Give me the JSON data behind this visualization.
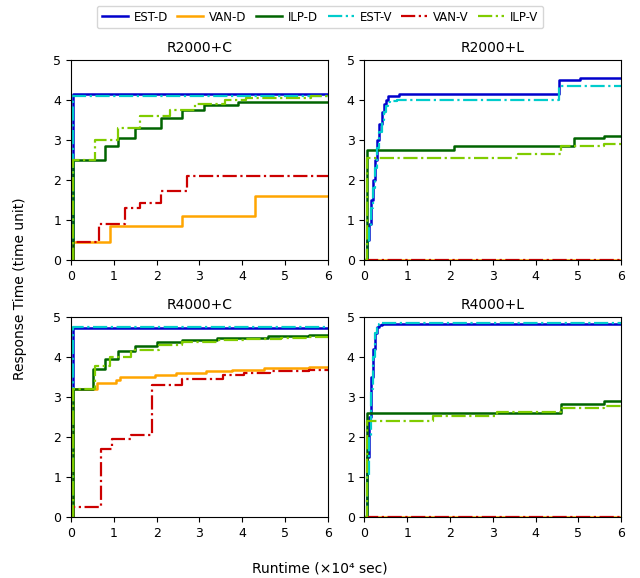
{
  "subplots": [
    {
      "title": "R2000+C",
      "xlim": [
        0,
        6
      ],
      "ylim": [
        0,
        5
      ],
      "series": {
        "EST-D": {
          "color": "#0000cc",
          "linestyle": "-",
          "lw": 1.8,
          "x": [
            0,
            0.05,
            6
          ],
          "y": [
            0,
            4.15,
            4.15
          ]
        },
        "VAN-D": {
          "color": "#ffa500",
          "linestyle": "-",
          "lw": 1.8,
          "x": [
            0,
            0.05,
            0.85,
            0.9,
            2.55,
            2.6,
            4.25,
            4.3,
            6
          ],
          "y": [
            0,
            0.45,
            0.45,
            0.85,
            0.85,
            1.1,
            1.1,
            1.6,
            1.6
          ]
        },
        "ILP-D": {
          "color": "#006400",
          "linestyle": "-",
          "lw": 1.8,
          "x": [
            0,
            0.05,
            0.75,
            0.8,
            1.05,
            1.1,
            1.45,
            1.5,
            2.05,
            2.1,
            2.55,
            2.6,
            3.05,
            3.1,
            3.85,
            3.9,
            6
          ],
          "y": [
            0,
            2.5,
            2.5,
            2.85,
            2.85,
            3.05,
            3.05,
            3.3,
            3.3,
            3.55,
            3.55,
            3.75,
            3.75,
            3.88,
            3.88,
            3.97,
            3.97
          ]
        },
        "EST-V": {
          "color": "#00cccc",
          "linestyle": "-.",
          "lw": 1.6,
          "x": [
            0,
            0.05,
            6
          ],
          "y": [
            0,
            4.1,
            4.1
          ]
        },
        "VAN-V": {
          "color": "#cc0000",
          "linestyle": "-.",
          "lw": 1.6,
          "x": [
            0,
            0.05,
            0.6,
            0.65,
            1.2,
            1.25,
            1.55,
            1.6,
            2.05,
            2.1,
            2.65,
            2.7,
            4.25,
            4.3,
            6
          ],
          "y": [
            0,
            0.45,
            0.45,
            0.9,
            0.9,
            1.3,
            1.3,
            1.43,
            1.43,
            1.72,
            1.72,
            2.1,
            2.1,
            2.1,
            2.1
          ]
        },
        "ILP-V": {
          "color": "#80cc00",
          "linestyle": "-.",
          "lw": 1.6,
          "x": [
            0,
            0.05,
            0.5,
            0.55,
            1.05,
            1.1,
            1.55,
            1.6,
            2.25,
            2.3,
            2.85,
            2.9,
            3.55,
            3.6,
            4.05,
            4.1,
            5.55,
            5.6,
            6
          ],
          "y": [
            0,
            2.5,
            2.5,
            3.0,
            3.0,
            3.3,
            3.3,
            3.6,
            3.6,
            3.75,
            3.75,
            3.9,
            3.9,
            4.0,
            4.0,
            4.05,
            4.05,
            4.1,
            4.1
          ]
        }
      }
    },
    {
      "title": "R2000+L",
      "xlim": [
        0,
        6
      ],
      "ylim": [
        0,
        5
      ],
      "series": {
        "EST-D": {
          "color": "#0000cc",
          "linestyle": "-",
          "lw": 1.8,
          "x": [
            0,
            0.05,
            0.1,
            0.15,
            0.2,
            0.25,
            0.3,
            0.35,
            0.4,
            0.45,
            0.5,
            0.55,
            0.65,
            0.7,
            0.75,
            0.8,
            4.5,
            4.55,
            5.0,
            5.05,
            6
          ],
          "y": [
            0,
            0.5,
            0.9,
            1.5,
            2.0,
            2.5,
            3.0,
            3.4,
            3.7,
            3.9,
            4.0,
            4.1,
            4.1,
            4.1,
            4.1,
            4.15,
            4.15,
            4.5,
            4.5,
            4.55,
            4.55
          ]
        },
        "VAN-D": {
          "color": "#ffa500",
          "linestyle": "-",
          "lw": 1.8,
          "x": [
            0,
            6
          ],
          "y": [
            0,
            0
          ]
        },
        "ILP-D": {
          "color": "#006400",
          "linestyle": "-",
          "lw": 1.8,
          "x": [
            0,
            0.05,
            2.05,
            2.1,
            4.85,
            4.9,
            5.55,
            5.6,
            6
          ],
          "y": [
            0,
            2.75,
            2.75,
            2.85,
            2.85,
            3.05,
            3.05,
            3.1,
            3.1
          ]
        },
        "EST-V": {
          "color": "#00cccc",
          "linestyle": "-.",
          "lw": 1.6,
          "x": [
            0,
            0.05,
            0.1,
            0.15,
            0.2,
            0.25,
            0.3,
            0.35,
            0.4,
            0.45,
            0.5,
            0.55,
            0.6,
            0.65,
            0.7,
            0.75,
            4.5,
            4.55,
            6
          ],
          "y": [
            0,
            0.4,
            0.8,
            1.3,
            1.8,
            2.3,
            2.8,
            3.2,
            3.5,
            3.7,
            3.85,
            3.95,
            3.98,
            3.98,
            3.98,
            4.0,
            4.0,
            4.35,
            4.35
          ]
        },
        "VAN-V": {
          "color": "#cc0000",
          "linestyle": "-.",
          "lw": 1.6,
          "x": [
            0,
            6
          ],
          "y": [
            0,
            0
          ]
        },
        "ILP-V": {
          "color": "#80cc00",
          "linestyle": "-.",
          "lw": 1.6,
          "x": [
            0,
            0.05,
            3.55,
            3.6,
            4.55,
            4.6,
            5.55,
            5.6,
            6
          ],
          "y": [
            0,
            2.55,
            2.55,
            2.65,
            2.65,
            2.85,
            2.85,
            2.9,
            2.9
          ]
        }
      }
    },
    {
      "title": "R4000+C",
      "xlim": [
        0,
        6
      ],
      "ylim": [
        0,
        5
      ],
      "series": {
        "EST-D": {
          "color": "#0000cc",
          "linestyle": "-",
          "lw": 1.8,
          "x": [
            0,
            0.05,
            6
          ],
          "y": [
            0,
            4.72,
            4.72
          ]
        },
        "VAN-D": {
          "color": "#ffa500",
          "linestyle": "-",
          "lw": 1.8,
          "x": [
            0,
            0.05,
            0.55,
            0.6,
            1.0,
            1.05,
            1.1,
            1.15,
            1.9,
            1.95,
            2.4,
            2.45,
            3.1,
            3.15,
            3.7,
            3.75,
            4.45,
            4.5,
            5.5,
            5.55,
            6
          ],
          "y": [
            0,
            3.2,
            3.2,
            3.35,
            3.35,
            3.42,
            3.42,
            3.5,
            3.5,
            3.55,
            3.55,
            3.6,
            3.6,
            3.65,
            3.65,
            3.68,
            3.68,
            3.72,
            3.72,
            3.75,
            3.75
          ]
        },
        "ILP-D": {
          "color": "#006400",
          "linestyle": "-",
          "lw": 1.8,
          "x": [
            0,
            0.05,
            0.45,
            0.5,
            0.75,
            0.8,
            1.05,
            1.1,
            1.45,
            1.5,
            1.95,
            2.0,
            2.55,
            2.6,
            3.35,
            3.4,
            4.55,
            4.6,
            5.5,
            5.55,
            6
          ],
          "y": [
            0,
            3.2,
            3.2,
            3.7,
            3.7,
            3.95,
            3.95,
            4.15,
            4.15,
            4.28,
            4.28,
            4.38,
            4.38,
            4.43,
            4.43,
            4.48,
            4.48,
            4.52,
            4.52,
            4.55,
            4.55
          ]
        },
        "EST-V": {
          "color": "#00cccc",
          "linestyle": "-.",
          "lw": 1.6,
          "x": [
            0,
            0.05,
            6
          ],
          "y": [
            0,
            4.75,
            4.75
          ]
        },
        "VAN-V": {
          "color": "#cc0000",
          "linestyle": "-.",
          "lw": 1.6,
          "x": [
            0,
            0.05,
            0.65,
            0.7,
            0.9,
            0.95,
            1.35,
            1.4,
            1.85,
            1.9,
            2.55,
            2.6,
            3.5,
            3.55,
            4.0,
            4.05,
            4.6,
            4.65,
            5.5,
            5.55,
            6
          ],
          "y": [
            0,
            0.25,
            0.25,
            1.7,
            1.7,
            1.95,
            1.95,
            2.05,
            2.05,
            3.3,
            3.3,
            3.45,
            3.45,
            3.55,
            3.55,
            3.6,
            3.6,
            3.65,
            3.65,
            3.68,
            3.68
          ]
        },
        "ILP-V": {
          "color": "#80cc00",
          "linestyle": "-.",
          "lw": 1.6,
          "x": [
            0,
            0.05,
            0.5,
            0.55,
            0.85,
            0.9,
            1.35,
            1.4,
            2.0,
            2.05,
            2.55,
            2.6,
            3.35,
            3.4,
            4.0,
            4.05,
            4.85,
            4.9,
            5.5,
            5.55,
            6
          ],
          "y": [
            0,
            3.2,
            3.2,
            3.78,
            3.78,
            4.0,
            4.0,
            4.18,
            4.18,
            4.3,
            4.3,
            4.38,
            4.38,
            4.42,
            4.42,
            4.45,
            4.45,
            4.48,
            4.48,
            4.5,
            4.5
          ]
        }
      }
    },
    {
      "title": "R4000+L",
      "xlim": [
        0,
        6
      ],
      "ylim": [
        0,
        5
      ],
      "series": {
        "EST-D": {
          "color": "#0000cc",
          "linestyle": "-",
          "lw": 1.8,
          "x": [
            0,
            0.05,
            0.1,
            0.15,
            0.2,
            0.25,
            0.3,
            0.35,
            0.4,
            6
          ],
          "y": [
            0,
            1.5,
            2.5,
            3.5,
            4.2,
            4.6,
            4.75,
            4.8,
            4.82,
            4.82
          ]
        },
        "VAN-D": {
          "color": "#ffa500",
          "linestyle": "-",
          "lw": 1.8,
          "x": [
            0,
            6
          ],
          "y": [
            0,
            0
          ]
        },
        "ILP-D": {
          "color": "#006400",
          "linestyle": "-",
          "lw": 1.8,
          "x": [
            0,
            0.05,
            4.55,
            4.6,
            5.55,
            5.6,
            6
          ],
          "y": [
            0,
            2.6,
            2.6,
            2.82,
            2.82,
            2.9,
            2.9
          ]
        },
        "EST-V": {
          "color": "#00cccc",
          "linestyle": "-.",
          "lw": 1.6,
          "x": [
            0,
            0.05,
            0.1,
            0.15,
            0.2,
            0.25,
            0.3,
            0.35,
            0.4,
            6
          ],
          "y": [
            0,
            1.0,
            2.0,
            3.2,
            4.0,
            4.6,
            4.78,
            4.82,
            4.85,
            4.85
          ]
        },
        "VAN-V": {
          "color": "#cc0000",
          "linestyle": "-.",
          "lw": 1.6,
          "x": [
            0,
            6
          ],
          "y": [
            0,
            0
          ]
        },
        "ILP-V": {
          "color": "#80cc00",
          "linestyle": "-.",
          "lw": 1.6,
          "x": [
            0,
            0.05,
            1.55,
            1.6,
            3.05,
            3.1,
            4.55,
            4.6,
            5.55,
            5.6,
            6
          ],
          "y": [
            0,
            2.4,
            2.4,
            2.52,
            2.52,
            2.62,
            2.62,
            2.72,
            2.72,
            2.78,
            2.78
          ]
        }
      }
    }
  ],
  "legend_entries": [
    {
      "label": "EST-D",
      "color": "#0000cc",
      "linestyle": "-",
      "lw": 1.8
    },
    {
      "label": "VAN-D",
      "color": "#ffa500",
      "linestyle": "-",
      "lw": 1.8
    },
    {
      "label": "ILP-D",
      "color": "#006400",
      "linestyle": "-",
      "lw": 1.8
    },
    {
      "label": "EST-V",
      "color": "#00cccc",
      "linestyle": "-.",
      "lw": 1.6
    },
    {
      "label": "VAN-V",
      "color": "#cc0000",
      "linestyle": "-.",
      "lw": 1.6
    },
    {
      "label": "ILP-V",
      "color": "#80cc00",
      "linestyle": "-.",
      "lw": 1.6
    }
  ],
  "xlabel": "Runtime (×10⁴ sec)",
  "ylabel": "Response Time (time unit)",
  "xticks": [
    0,
    1,
    2,
    3,
    4,
    5,
    6
  ],
  "yticks": [
    0,
    1,
    2,
    3,
    4,
    5
  ],
  "figsize": [
    6.4,
    5.78
  ],
  "dpi": 100
}
